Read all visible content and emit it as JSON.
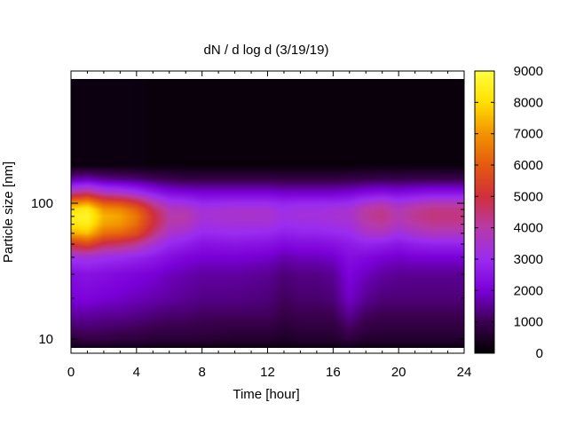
{
  "chart_data": {
    "type": "heatmap",
    "title": "dN / d log d (3/19/19)",
    "xlabel": "Time [hour]",
    "ylabel": "Particle size [nm]",
    "xlim": [
      0,
      24
    ],
    "ylim_nm": [
      8.2,
      190
    ],
    "y_scale": "log",
    "x_ticks": [
      0,
      4,
      8,
      12,
      16,
      20,
      24
    ],
    "x_tick_labels": [
      "0",
      "4",
      "8",
      "12",
      "16",
      "20",
      "24"
    ],
    "y_ticks": [
      10,
      100
    ],
    "y_tick_labels": [
      "10",
      "100"
    ],
    "colorbar": {
      "range": [
        0,
        9000
      ],
      "ticks": [
        0,
        1000,
        2000,
        3000,
        4000,
        5000,
        6000,
        7000,
        8000,
        9000
      ],
      "tick_labels": [
        "0",
        "1000",
        "2000",
        "3000",
        "4000",
        "5000",
        "6000",
        "7000",
        "8000",
        "9000"
      ],
      "palette": [
        "#000000",
        "#3c0050",
        "#7a00d8",
        "#9b2cf0",
        "#b73aa8",
        "#d0303c",
        "#e45a10",
        "#f29400",
        "#ffe000",
        "#ffff40"
      ]
    },
    "time_hours": [
      0,
      1,
      2,
      3,
      4,
      5,
      6,
      7,
      8,
      10,
      12,
      13,
      14,
      15,
      16,
      17,
      18,
      19,
      20,
      21,
      22,
      23,
      24
    ],
    "size_nm": [
      8.2,
      10,
      15,
      20,
      30,
      40,
      50,
      60,
      70,
      80,
      90,
      100,
      120,
      150,
      190
    ],
    "values": [
      [
        100,
        800,
        1600,
        2000,
        2300,
        3200,
        5200,
        7300,
        8200,
        8500,
        8000,
        6800,
        4000,
        1600,
        200
      ],
      [
        100,
        900,
        1600,
        2100,
        2400,
        3300,
        5600,
        7600,
        8400,
        8700,
        8400,
        7200,
        4400,
        1800,
        200
      ],
      [
        100,
        900,
        1500,
        2000,
        2300,
        3100,
        4800,
        6400,
        7200,
        7400,
        7000,
        6000,
        3700,
        1500,
        200
      ],
      [
        100,
        800,
        1500,
        1900,
        2200,
        3000,
        4600,
        6200,
        7000,
        7200,
        6800,
        5800,
        3500,
        1400,
        200
      ],
      [
        100,
        800,
        1400,
        1800,
        2100,
        2800,
        4200,
        5700,
        6300,
        6500,
        6100,
        5200,
        3100,
        1300,
        200
      ],
      [
        100,
        700,
        1300,
        1700,
        2000,
        2600,
        3500,
        4500,
        5000,
        5100,
        4800,
        4100,
        2600,
        1100,
        150
      ],
      [
        100,
        700,
        1200,
        1600,
        1800,
        2300,
        2900,
        3500,
        3900,
        4000,
        3800,
        3300,
        2200,
        1000,
        150
      ],
      [
        100,
        700,
        1200,
        1500,
        1700,
        2100,
        2700,
        3300,
        3800,
        4000,
        3700,
        3200,
        2100,
        900,
        150
      ],
      [
        100,
        700,
        1100,
        1400,
        1600,
        2000,
        2400,
        2900,
        3200,
        3400,
        3300,
        2900,
        2000,
        900,
        150
      ],
      [
        100,
        600,
        1100,
        1400,
        1600,
        2000,
        2500,
        3000,
        3300,
        3500,
        3400,
        3000,
        2000,
        900,
        150
      ],
      [
        100,
        600,
        1100,
        1300,
        1500,
        1900,
        2400,
        2900,
        3300,
        3500,
        3400,
        3000,
        2000,
        900,
        150
      ],
      [
        100,
        500,
        900,
        1100,
        1300,
        1700,
        2200,
        2700,
        3000,
        3200,
        3100,
        2800,
        1900,
        850,
        150
      ],
      [
        100,
        600,
        1000,
        1200,
        1400,
        1800,
        2300,
        2800,
        3100,
        3300,
        3200,
        2900,
        1900,
        850,
        150
      ],
      [
        100,
        600,
        1000,
        1200,
        1400,
        1800,
        2300,
        2800,
        3100,
        3300,
        3200,
        2900,
        1900,
        850,
        150
      ],
      [
        100,
        600,
        1000,
        1300,
        1500,
        1900,
        2400,
        2900,
        3200,
        3400,
        3300,
        2900,
        1900,
        850,
        150
      ],
      [
        100,
        800,
        1500,
        1900,
        2100,
        2300,
        2600,
        3000,
        3300,
        3500,
        3400,
        3000,
        2000,
        900,
        150
      ],
      [
        100,
        600,
        1100,
        1500,
        1800,
        2200,
        2800,
        3500,
        3900,
        4100,
        4000,
        3500,
        2200,
        950,
        150
      ],
      [
        100,
        600,
        1000,
        1300,
        1600,
        2000,
        2700,
        3600,
        4100,
        4300,
        4200,
        3700,
        2300,
        1000,
        150
      ],
      [
        100,
        600,
        1000,
        1300,
        1500,
        1900,
        2500,
        3200,
        3700,
        3900,
        3800,
        3300,
        2200,
        950,
        150
      ],
      [
        100,
        600,
        1000,
        1300,
        1500,
        2000,
        2700,
        3500,
        4000,
        4200,
        4100,
        3600,
        2300,
        1000,
        150
      ],
      [
        100,
        600,
        1000,
        1300,
        1500,
        2000,
        2800,
        3700,
        4200,
        4400,
        4300,
        3800,
        2400,
        1000,
        150
      ],
      [
        100,
        600,
        1000,
        1300,
        1500,
        2000,
        2800,
        3700,
        4200,
        4400,
        4300,
        3800,
        2400,
        1000,
        150
      ],
      [
        100,
        600,
        1000,
        1300,
        1500,
        2000,
        2800,
        3700,
        4200,
        4400,
        4300,
        3800,
        2400,
        1000,
        150
      ]
    ]
  }
}
